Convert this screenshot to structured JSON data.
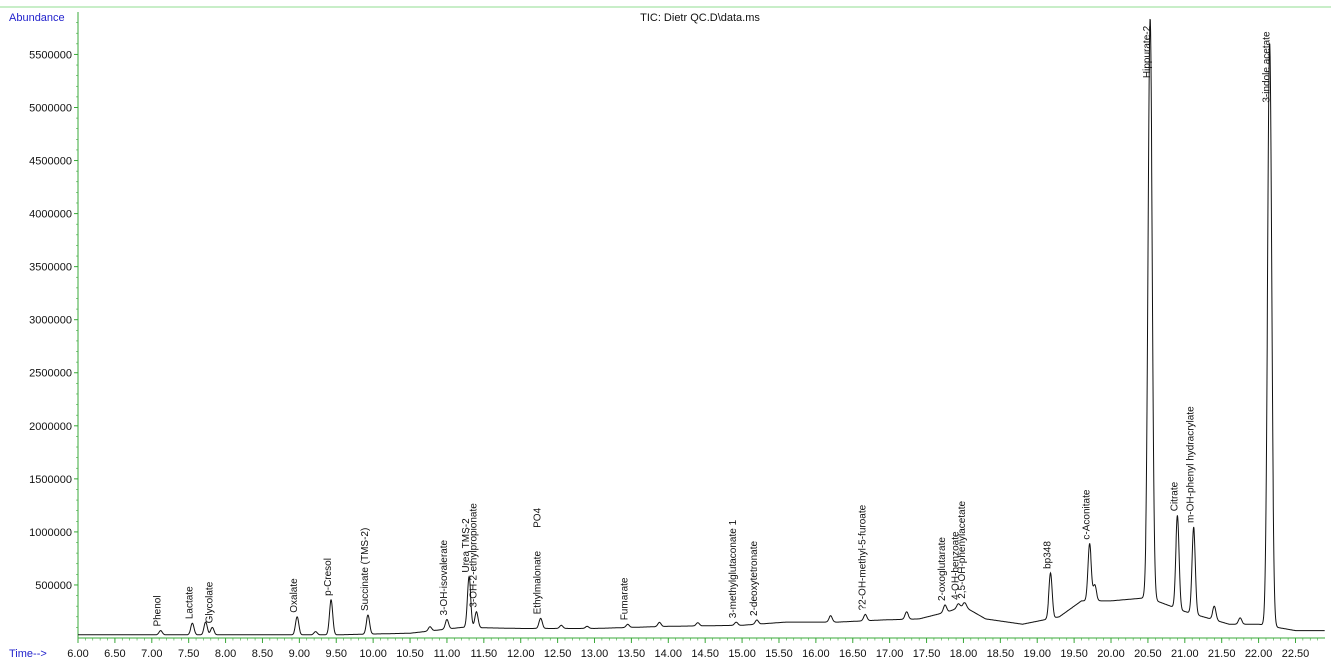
{
  "chart_data": {
    "type": "line",
    "title": "TIC: Dietr QC.D\\data.ms",
    "ylabel": "Abundance",
    "xlabel": "Time-->",
    "xlim": [
      6.0,
      22.9
    ],
    "ylim": [
      0,
      5900000
    ],
    "x_ticks": [
      "6.00",
      "6.50",
      "7.00",
      "7.50",
      "8.00",
      "8.50",
      "9.00",
      "9.50",
      "10.00",
      "10.50",
      "11.00",
      "11.50",
      "12.00",
      "12.50",
      "13.00",
      "13.50",
      "14.00",
      "14.50",
      "15.00",
      "15.50",
      "16.00",
      "16.50",
      "17.00",
      "17.50",
      "18.00",
      "18.50",
      "19.00",
      "19.50",
      "20.00",
      "20.50",
      "21.00",
      "21.50",
      "22.00",
      "22.50"
    ],
    "y_ticks": [
      "500000",
      "1000000",
      "1500000",
      "2000000",
      "2500000",
      "3000000",
      "3500000",
      "4000000",
      "4500000",
      "5000000",
      "5500000"
    ],
    "grid": false,
    "colors": {
      "axis": "#3aa83a",
      "trace": "#111111",
      "label_blue": "#2222cc",
      "frame_top": "#8fd88f"
    },
    "baseline_anchors": [
      [
        6.0,
        30000
      ],
      [
        9.5,
        30000
      ],
      [
        10.5,
        45000
      ],
      [
        11.2,
        100000
      ],
      [
        12.0,
        90000
      ],
      [
        13.0,
        90000
      ],
      [
        14.0,
        110000
      ],
      [
        15.0,
        120000
      ],
      [
        15.6,
        150000
      ],
      [
        16.3,
        150000
      ],
      [
        16.9,
        170000
      ],
      [
        17.4,
        180000
      ],
      [
        17.8,
        250000
      ],
      [
        18.0,
        300000
      ],
      [
        18.3,
        180000
      ],
      [
        18.8,
        130000
      ],
      [
        19.3,
        200000
      ],
      [
        19.6,
        350000
      ],
      [
        20.0,
        350000
      ],
      [
        20.5,
        380000
      ],
      [
        21.0,
        250000
      ],
      [
        21.6,
        130000
      ],
      [
        22.0,
        130000
      ],
      [
        22.5,
        70000
      ],
      [
        22.9,
        70000
      ]
    ],
    "peaks": [
      {
        "x": 7.12,
        "y": 40000,
        "label": "Phenol"
      },
      {
        "x": 7.55,
        "y": 110000,
        "label": "Lactate"
      },
      {
        "x": 7.73,
        "y": 120000
      },
      {
        "x": 7.82,
        "y": 70000,
        "label": "Glycolate"
      },
      {
        "x": 8.97,
        "y": 170000,
        "label": "Oxalate"
      },
      {
        "x": 9.22,
        "y": 30000
      },
      {
        "x": 9.43,
        "y": 330000,
        "label": "p-Cresol"
      },
      {
        "x": 9.93,
        "y": 180000,
        "label": "Succinate (TMS-2)"
      },
      {
        "x": 10.77,
        "y": 40000
      },
      {
        "x": 11.0,
        "y": 90000,
        "label": "3-OH-isovalerate"
      },
      {
        "x": 11.3,
        "y": 480000,
        "label": "Urea TMS-2"
      },
      {
        "x": 11.4,
        "y": 150000,
        "label": "3-OH-2-ethylpropionate"
      },
      {
        "x": 12.27,
        "y": 95000,
        "label": "Ethylmalonate"
      },
      {
        "x": 12.55,
        "y": 30000
      },
      {
        "x": 12.9,
        "y": 20000
      },
      {
        "x": 13.45,
        "y": 30000,
        "label": "Fumarate"
      },
      {
        "x": 13.88,
        "y": 40000
      },
      {
        "x": 14.4,
        "y": 30000
      },
      {
        "x": 14.92,
        "y": 30000,
        "label": "3-methylglutaconate 1"
      },
      {
        "x": 15.2,
        "y": 40000,
        "label": "2-deoxytetronate"
      },
      {
        "x": 16.2,
        "y": 60000
      },
      {
        "x": 16.67,
        "y": 60000,
        "label": "?2-OH-methyl-5-furoate"
      },
      {
        "x": 17.23,
        "y": 70000
      },
      {
        "x": 17.75,
        "y": 70000,
        "label": "2-oxoglutarate"
      },
      {
        "x": 17.93,
        "y": 40000,
        "label": "4-OH-benzoate"
      },
      {
        "x": 18.02,
        "y": 40000,
        "label": "2,5-OH-phenylacetate"
      },
      {
        "x": 19.18,
        "y": 430000,
        "label": "bp348"
      },
      {
        "x": 19.71,
        "y": 540000,
        "label": "c-Aconitate"
      },
      {
        "x": 19.78,
        "y": 150000
      },
      {
        "x": 20.53,
        "y": 5470000,
        "label": "Hippurate-2"
      },
      {
        "x": 20.9,
        "y": 880000,
        "label": "Citrate"
      },
      {
        "x": 21.12,
        "y": 820000,
        "label": "m-OH-phenyl hydracrylate"
      },
      {
        "x": 21.4,
        "y": 130000
      },
      {
        "x": 21.75,
        "y": 60000
      },
      {
        "x": 22.15,
        "y": 5500000,
        "label": "3-indole acetate"
      }
    ],
    "extra_labels": [
      {
        "x": 12.27,
        "y": 1000000,
        "label": "PO4"
      }
    ]
  }
}
